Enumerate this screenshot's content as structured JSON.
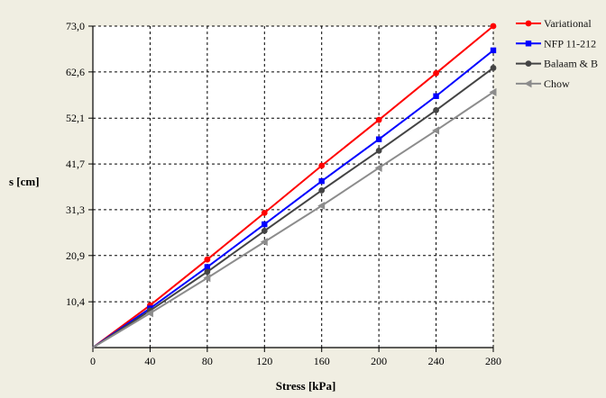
{
  "chart_data": {
    "type": "line",
    "title": "",
    "xlabel": "Stress [kPa]",
    "ylabel": "s [cm]",
    "x": [
      0,
      40,
      80,
      120,
      160,
      200,
      240,
      280
    ],
    "x_ticks": [
      "0",
      "40",
      "80",
      "120",
      "160",
      "200",
      "240",
      "280"
    ],
    "y_ticks": [
      "10,4",
      "20,9",
      "31,3",
      "41,7",
      "52,1",
      "62,6",
      "73,0"
    ],
    "xlim": [
      0,
      280
    ],
    "ylim": [
      0,
      73.0
    ],
    "grid": true,
    "legend_position": "right",
    "series": [
      {
        "name": "Variational",
        "color": "#ff0000",
        "marker": "circle",
        "values": [
          0,
          9.6,
          20.0,
          30.6,
          41.3,
          51.7,
          62.3,
          73.0
        ]
      },
      {
        "name": "NFP 11-212",
        "color": "#0000ff",
        "marker": "square",
        "values": [
          0,
          8.9,
          18.3,
          28.0,
          37.8,
          47.3,
          57.1,
          67.5
        ]
      },
      {
        "name": "Balaam & B",
        "color": "#444444",
        "marker": "circle",
        "values": [
          0,
          8.4,
          17.2,
          26.5,
          35.7,
          44.7,
          53.9,
          63.5
        ]
      },
      {
        "name": "Chow",
        "color": "#8c8c8c",
        "marker": "triangle-left",
        "values": [
          0,
          7.8,
          15.8,
          24.0,
          32.2,
          40.8,
          49.3,
          58.0
        ]
      }
    ]
  }
}
